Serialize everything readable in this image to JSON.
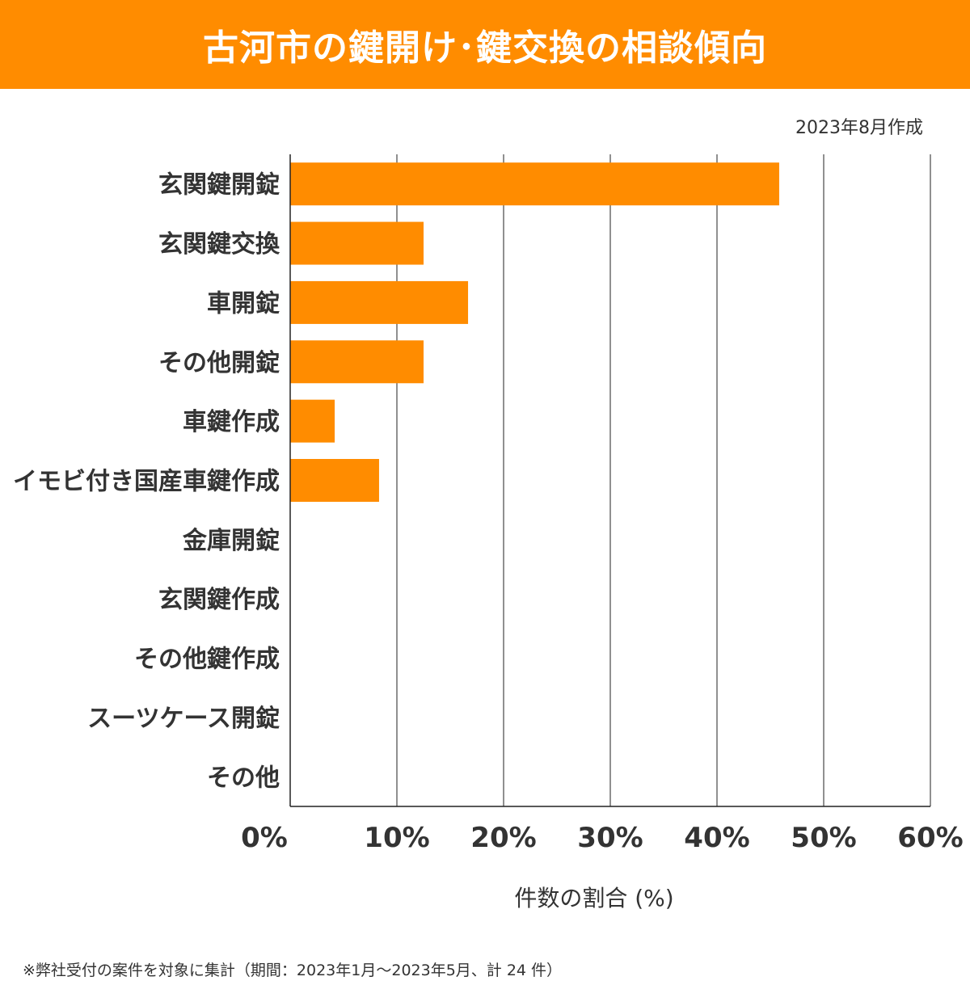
{
  "chart_data": {
    "type": "bar",
    "orientation": "horizontal",
    "title": "古河市の鍵開け･鍵交換の相談傾向",
    "subtitle": "2023年8月作成",
    "categories": [
      "玄関鍵開錠",
      "玄関鍵交換",
      "車開錠",
      "その他開錠",
      "車鍵作成",
      "イモビ付き国産車鍵作成",
      "金庫開錠",
      "玄関鍵作成",
      "その他鍵作成",
      "スーツケース開錠",
      "その他"
    ],
    "values": [
      45.83,
      12.5,
      16.67,
      12.5,
      4.17,
      8.33,
      0,
      0,
      0,
      0,
      0
    ],
    "xlabel": "件数の割合 (%)",
    "ylabel": "",
    "xlim": [
      0,
      60
    ],
    "xticks": [
      "0%",
      "10%",
      "20%",
      "30%",
      "40%",
      "50%",
      "60%"
    ],
    "grid": "vertical",
    "bar_color": "#ff8c00",
    "footnote": "※弊社受付の案件を対象に集計（期間：2023年1月～2023年5月、計 24 件）"
  }
}
